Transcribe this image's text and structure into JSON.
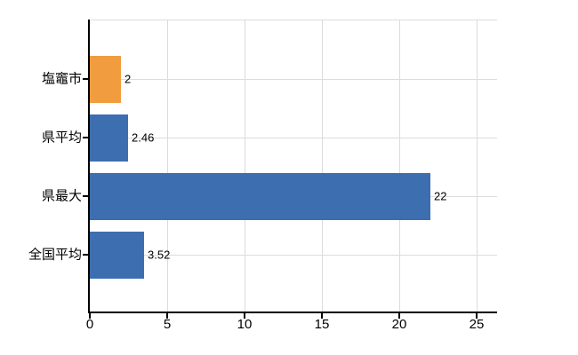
{
  "chart_data": {
    "type": "bar",
    "orientation": "horizontal",
    "title": "",
    "categories": [
      "塩竈市",
      "県平均",
      "県最大",
      "全国平均"
    ],
    "values": [
      2,
      2.46,
      22,
      3.52
    ],
    "value_labels": [
      "2",
      "2.46",
      "22",
      "3.52"
    ],
    "bar_colors": [
      "#F09C3F",
      "#3D6EB0",
      "#3D6EB0",
      "#3D6EB0"
    ],
    "x_ticks": [
      0,
      5,
      10,
      15,
      20,
      25
    ],
    "x_tick_labels": [
      "0",
      "5",
      "10",
      "15",
      "20",
      "25"
    ],
    "xlim": [
      0,
      26.3
    ],
    "grid": true,
    "legend": false,
    "xlabel": "",
    "ylabel": ""
  },
  "colors": {
    "background": "#ffffff",
    "bar_highlight": "#F09C3F",
    "bar_default": "#3D6EB0",
    "gridline": "#dcdcdc",
    "axis": "#000000",
    "text": "#000000"
  }
}
